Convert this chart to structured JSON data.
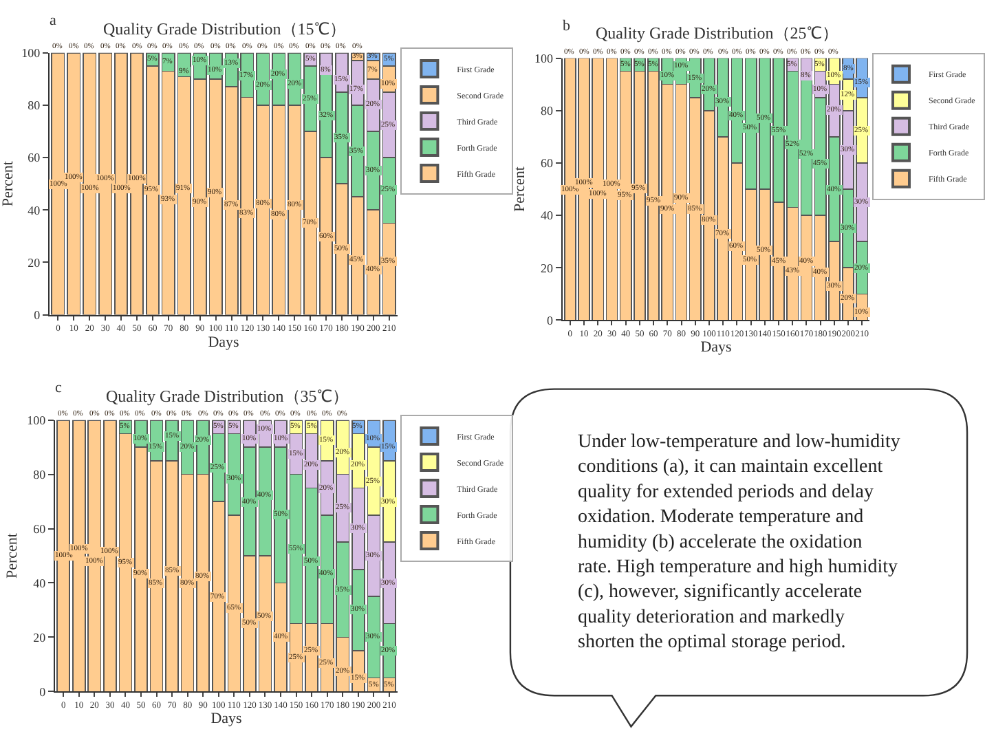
{
  "chart_data": [
    {
      "type": "bar",
      "title": "Quality Grade Distribution（15℃）",
      "xlabel": "Days",
      "ylabel": "Percent",
      "annotations": [
        "a"
      ],
      "stacked": true,
      "legend": "top right",
      "grid": false,
      "ylim": [
        0,
        100
      ],
      "yticks": [
        0,
        20,
        40,
        60,
        80,
        100
      ],
      "categories": [
        "0",
        "10",
        "20",
        "30",
        "40",
        "50",
        "60",
        "70",
        "80",
        "90",
        "100",
        "110",
        "120",
        "130",
        "140",
        "150",
        "160",
        "170",
        "180",
        "190",
        "200",
        "210"
      ],
      "series": [
        {
          "name": "Fifth Grade",
          "color": "#ffcc8f",
          "values": [
            100,
            100,
            100,
            100,
            100,
            100,
            95,
            93,
            91,
            90,
            90,
            87,
            83,
            80,
            80,
            80,
            70,
            60,
            50,
            45,
            40,
            35
          ],
          "value_labels": [
            "100%",
            "100%",
            "100%",
            "100%",
            "100%",
            "100%",
            "95%",
            "93%",
            "91%",
            "90%",
            "90%",
            "87%",
            "83%",
            "80%",
            "80%",
            "80%",
            "70%",
            "60%",
            "50%",
            "45%",
            "40%",
            "35%"
          ]
        },
        {
          "name": "Forth Grade",
          "color": "#7ed69a",
          "values": [
            0,
            0,
            0,
            0,
            0,
            0,
            5,
            7,
            9,
            10,
            10,
            13,
            17,
            20,
            20,
            20,
            25,
            32,
            35,
            35,
            30,
            25
          ],
          "value_labels": [
            null,
            null,
            null,
            null,
            null,
            null,
            "5%",
            "7%",
            "9%",
            "10%",
            "10%",
            "13%",
            "17%",
            "20%",
            "20%",
            "20%",
            "25%",
            "32%",
            "35%",
            "35%",
            "30%",
            "25%"
          ]
        },
        {
          "name": "Third Grade",
          "color": "#d6bde3",
          "values": [
            0,
            0,
            0,
            0,
            0,
            0,
            0,
            0,
            0,
            0,
            0,
            0,
            0,
            0,
            0,
            0,
            5,
            8,
            15,
            17,
            20,
            25
          ],
          "value_labels": [
            null,
            null,
            null,
            null,
            null,
            null,
            null,
            null,
            null,
            null,
            null,
            null,
            null,
            null,
            null,
            null,
            "5%",
            "8%",
            "15%",
            "17%",
            "20%",
            "25%"
          ]
        },
        {
          "name": "Second Grade",
          "color": "#ffcc8f",
          "values": [
            0,
            0,
            0,
            0,
            0,
            0,
            0,
            0,
            0,
            0,
            0,
            0,
            0,
            0,
            0,
            0,
            0,
            0,
            0,
            3,
            7,
            10
          ],
          "value_labels": [
            null,
            null,
            null,
            null,
            null,
            null,
            null,
            null,
            null,
            null,
            null,
            null,
            null,
            null,
            null,
            null,
            null,
            null,
            null,
            "3%",
            "7%",
            "10%"
          ]
        },
        {
          "name": "First Grade",
          "color": "#80b4f0",
          "values": [
            0,
            0,
            0,
            0,
            0,
            0,
            0,
            0,
            0,
            0,
            0,
            0,
            0,
            0,
            0,
            0,
            0,
            0,
            0,
            0,
            3,
            5
          ],
          "value_labels": [
            "0%",
            "0%",
            "0%",
            "0%",
            "0%",
            "0%",
            "0%",
            "0%",
            "0%",
            "0%",
            "0%",
            "0%",
            "0%",
            "0%",
            "0%",
            "0%",
            "0%",
            "0%",
            "0%",
            "0%",
            "3%",
            "5%"
          ]
        }
      ]
    },
    {
      "type": "bar",
      "title": "Quality Grade Distribution（25℃）",
      "xlabel": "Days",
      "ylabel": "Percent",
      "annotations": [
        "b"
      ],
      "stacked": true,
      "legend": "top right",
      "grid": false,
      "ylim": [
        0,
        100
      ],
      "yticks": [
        0,
        20,
        40,
        60,
        80,
        100
      ],
      "categories": [
        "0",
        "10",
        "20",
        "30",
        "40",
        "50",
        "60",
        "70",
        "80",
        "90",
        "100",
        "110",
        "120",
        "130",
        "140",
        "150",
        "160",
        "170",
        "180",
        "190",
        "200",
        "210"
      ],
      "series": [
        {
          "name": "Fifth Grade",
          "color": "#ffcc8f",
          "values": [
            100,
            100,
            100,
            100,
            95,
            95,
            95,
            90,
            90,
            85,
            80,
            70,
            60,
            50,
            50,
            45,
            43,
            40,
            40,
            30,
            20,
            10
          ],
          "value_labels": [
            "100%",
            "100%",
            "100%",
            "100%",
            "95%",
            "95%",
            "95%",
            "90%",
            "90%",
            "85%",
            "80%",
            "70%",
            "60%",
            "50%",
            "50%",
            "45%",
            "43%",
            "40%",
            "40%",
            "30%",
            "20%",
            "10%"
          ]
        },
        {
          "name": "Forth Grade",
          "color": "#7ed69a",
          "values": [
            0,
            0,
            0,
            0,
            5,
            5,
            5,
            10,
            10,
            15,
            20,
            30,
            40,
            50,
            50,
            55,
            52,
            52,
            45,
            40,
            30,
            20
          ],
          "value_labels": [
            null,
            null,
            null,
            null,
            "5%",
            "5%",
            "5%",
            "10%",
            "10%",
            "15%",
            "20%",
            "30%",
            "40%",
            "50%",
            "50%",
            "55%",
            "52%",
            "52%",
            "45%",
            "40%",
            "30%",
            "20%"
          ]
        },
        {
          "name": "Third Grade",
          "color": "#d6bde3",
          "values": [
            0,
            0,
            0,
            0,
            0,
            0,
            0,
            0,
            0,
            0,
            0,
            0,
            0,
            0,
            0,
            0,
            5,
            8,
            10,
            20,
            30,
            30
          ],
          "value_labels": [
            null,
            null,
            null,
            null,
            null,
            null,
            null,
            null,
            null,
            null,
            null,
            null,
            null,
            null,
            null,
            null,
            "5%",
            "8%",
            "10%",
            "20%",
            "30%",
            "30%"
          ]
        },
        {
          "name": "Second Grade",
          "color": "#ffff99",
          "values": [
            0,
            0,
            0,
            0,
            0,
            0,
            0,
            0,
            0,
            0,
            0,
            0,
            0,
            0,
            0,
            0,
            0,
            0,
            5,
            10,
            12,
            25
          ],
          "value_labels": [
            null,
            null,
            null,
            null,
            null,
            null,
            null,
            null,
            null,
            null,
            null,
            null,
            null,
            null,
            null,
            null,
            null,
            null,
            "5%",
            "10%",
            "12%",
            "25%"
          ]
        },
        {
          "name": "First Grade",
          "color": "#80b4f0",
          "values": [
            0,
            0,
            0,
            0,
            0,
            0,
            0,
            0,
            0,
            0,
            0,
            0,
            0,
            0,
            0,
            0,
            0,
            0,
            0,
            0,
            8,
            15
          ],
          "value_labels": [
            "0%",
            "0%",
            "0%",
            "0%",
            "0%",
            "0%",
            "0%",
            "0%",
            "0%",
            "0%",
            "0%",
            "0%",
            "0%",
            "0%",
            "0%",
            "0%",
            "0%",
            "0%",
            "0%",
            "0%",
            "8%",
            "15%"
          ]
        }
      ]
    },
    {
      "type": "bar",
      "title": "Quality Grade Distribution（35℃）",
      "xlabel": "Days",
      "ylabel": "Percent",
      "annotations": [
        "c"
      ],
      "stacked": true,
      "legend": "top right",
      "grid": false,
      "ylim": [
        0,
        100
      ],
      "yticks": [
        0,
        20,
        40,
        60,
        80,
        100
      ],
      "categories": [
        "0",
        "10",
        "20",
        "30",
        "40",
        "50",
        "60",
        "70",
        "80",
        "90",
        "100",
        "110",
        "120",
        "130",
        "140",
        "150",
        "160",
        "170",
        "180",
        "190",
        "200",
        "210"
      ],
      "series": [
        {
          "name": "Fifth Grade",
          "color": "#ffcc8f",
          "values": [
            100,
            100,
            100,
            100,
            95,
            90,
            85,
            85,
            80,
            80,
            70,
            65,
            50,
            50,
            40,
            25,
            25,
            25,
            20,
            15,
            5,
            5
          ],
          "value_labels": [
            "100%",
            "100%",
            "100%",
            "100%",
            "95%",
            "90%",
            "85%",
            "85%",
            "80%",
            "80%",
            "70%",
            "65%",
            "50%",
            "50%",
            "40%",
            "25%",
            "25%",
            "25%",
            "20%",
            "15%",
            "5%",
            "5%"
          ]
        },
        {
          "name": "Forth Grade",
          "color": "#7ed69a",
          "values": [
            0,
            0,
            0,
            0,
            5,
            10,
            15,
            15,
            20,
            20,
            25,
            30,
            40,
            40,
            50,
            55,
            50,
            40,
            35,
            30,
            30,
            20
          ],
          "value_labels": [
            null,
            null,
            null,
            null,
            "5%",
            "10%",
            "15%",
            "15%",
            "20%",
            "20%",
            "25%",
            "30%",
            "40%",
            "40%",
            "50%",
            "55%",
            "50%",
            "40%",
            "35%",
            "30%",
            "30%",
            "20%"
          ]
        },
        {
          "name": "Third Grade",
          "color": "#d6bde3",
          "values": [
            0,
            0,
            0,
            0,
            0,
            0,
            0,
            0,
            0,
            0,
            5,
            5,
            10,
            10,
            10,
            15,
            20,
            20,
            25,
            30,
            30,
            30
          ],
          "value_labels": [
            null,
            null,
            null,
            null,
            null,
            null,
            null,
            null,
            null,
            null,
            "5%",
            "5%",
            "10%",
            "10%",
            "10%",
            "15%",
            "20%",
            "20%",
            "25%",
            "30%",
            "30%",
            "30%"
          ]
        },
        {
          "name": "Second Grade",
          "color": "#ffff99",
          "values": [
            0,
            0,
            0,
            0,
            0,
            0,
            0,
            0,
            0,
            0,
            0,
            0,
            0,
            0,
            0,
            5,
            5,
            15,
            20,
            20,
            25,
            30
          ],
          "value_labels": [
            null,
            null,
            null,
            null,
            null,
            null,
            null,
            null,
            null,
            null,
            null,
            null,
            null,
            null,
            null,
            "5%",
            "5%",
            "15%",
            "20%",
            "20%",
            "25%",
            "30%"
          ]
        },
        {
          "name": "First Grade",
          "color": "#80b4f0",
          "values": [
            0,
            0,
            0,
            0,
            0,
            0,
            0,
            0,
            0,
            0,
            0,
            0,
            0,
            0,
            0,
            0,
            0,
            0,
            0,
            5,
            10,
            15
          ],
          "value_labels": [
            "0%",
            "0%",
            "0%",
            "0%",
            "0%",
            "0%",
            "0%",
            "0%",
            "0%",
            "0%",
            "0%",
            "0%",
            "0%",
            "0%",
            "0%",
            "0%",
            "0%",
            "0%",
            "0%",
            "5%",
            "10%",
            "15%"
          ]
        }
      ]
    },
    {
      "type": "other",
      "annotations": [
        "Under low-temperature and low-humidity conditions (a), it can maintain excellent quality for extended periods and delay oxidation. Moderate temperature and humidity (b) accelerate the oxidation rate. High temperature and high humidity (c), however, significantly accelerate quality deterioration and markedly shorten the optimal storage period."
      ]
    }
  ]
}
